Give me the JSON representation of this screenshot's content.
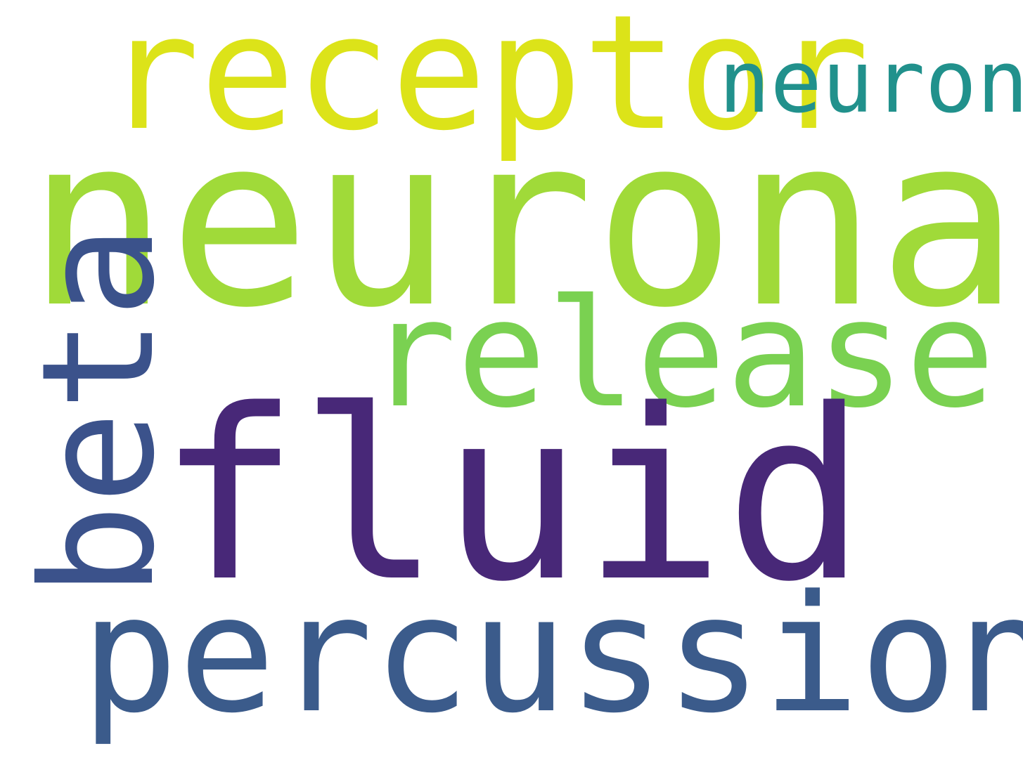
{
  "cloud": {
    "background_color": "#ffffff",
    "words": {
      "receptor": {
        "text": "receptor",
        "color": "#dce319"
      },
      "neuron": {
        "text": "neuron",
        "color": "#21918c"
      },
      "neuronal": {
        "text": "neuronal",
        "color": "#a0da39"
      },
      "release": {
        "text": "release",
        "color": "#7ad151"
      },
      "beta": {
        "text": "beta",
        "color": "#3b528b"
      },
      "fluid": {
        "text": "fluid",
        "color": "#482878"
      },
      "percussion": {
        "text": "percussion",
        "color": "#3b5b8b"
      }
    }
  }
}
